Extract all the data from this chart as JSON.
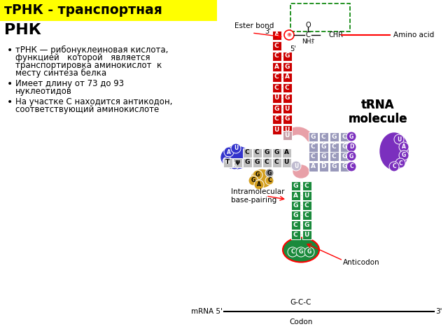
{
  "title_yellow": "тРНК - транспортная",
  "title_bold": "РНК",
  "bullet1_line1": "тРНК — рибонуклеиновая кислота,",
  "bullet1_line2": "функцией   которой   является",
  "bullet1_line3": "транспортировка аминокислот  к",
  "bullet1_line4": "месту синтеза белка",
  "bullet2_line1": "Имеет длину от 73 до 93",
  "bullet2_line2": "нуклеотидов",
  "bullet3_line1": "На участке C находится антикодон,",
  "bullet3_line2": "соответствующий аминокислоте",
  "label_ester": "Ester bond",
  "label_amino": "Amino acid",
  "label_trna": "tRNA\nmolecule",
  "label_intramol": "Intramolecular\nbase-pairing",
  "label_anticodon": "Anticodon",
  "label_mrna": "mRNA 5'",
  "label_codon": "Codon",
  "label_3prime_top": "3'",
  "label_5prime": "5'",
  "label_3prime_bot": "3'",
  "bg_color": "#ffffff",
  "title_bg": "#ffff00",
  "red_color": "#cc0000",
  "blue_color": "#3333cc",
  "purple_color": "#7b2fbe",
  "green_color": "#1a8a3c",
  "gray_color": "#9999bb",
  "gold_color": "#d4a020",
  "salmon_color": "#e8857a",
  "pink_color": "#e8a0a8"
}
